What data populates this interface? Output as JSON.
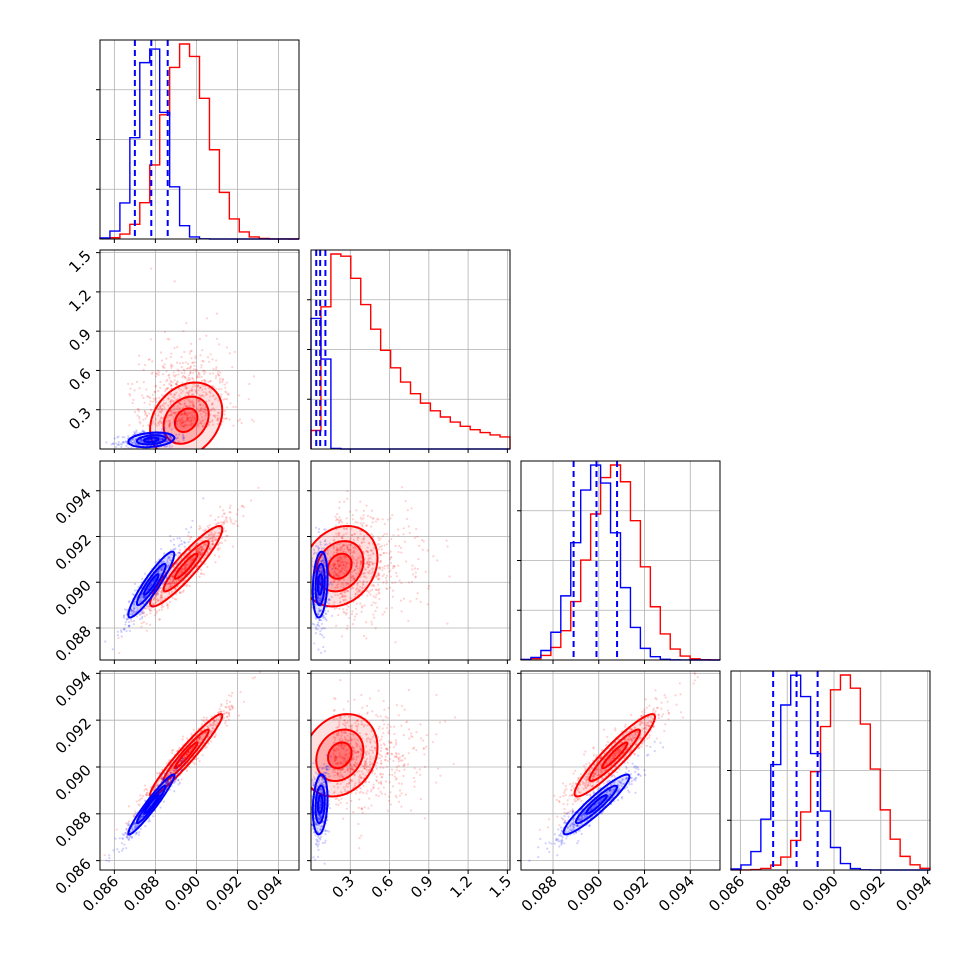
{
  "chart_data": {
    "type": "scatter",
    "subtype": "corner-plot",
    "n_params": 4,
    "grid": true,
    "colors": {
      "series_a": "#0000ff",
      "series_b": "#ff0000"
    },
    "parameters": [
      {
        "range": [
          0.0853,
          0.095
        ],
        "ticks": [
          0.086,
          0.088,
          0.09,
          0.092,
          0.094
        ],
        "tick_labels": [
          "0.086",
          "0.088",
          "0.090",
          "0.092",
          "0.094"
        ],
        "blue": {
          "mean": 0.0878,
          "sd": 0.0007
        },
        "red": {
          "mean": 0.0895,
          "sd": 0.0011
        },
        "quantiles_blue": [
          0.087,
          0.0878,
          0.0886
        ]
      },
      {
        "range": [
          0.0,
          1.52
        ],
        "ticks": [
          0.3,
          0.6,
          0.9,
          1.2,
          1.5
        ],
        "tick_labels": [
          "0.3",
          "0.6",
          "0.9",
          "1.2",
          "1.5"
        ],
        "blue": {
          "mean": 0.07,
          "sd": 0.035
        },
        "red": {
          "mean": 0.22,
          "sd": 0.18
        },
        "quantiles_blue": [
          0.04,
          0.07,
          0.11
        ]
      },
      {
        "range": [
          0.0866,
          0.0953
        ],
        "ticks": [
          0.088,
          0.09,
          0.092,
          0.094
        ],
        "tick_labels": [
          "0.088",
          "0.090",
          "0.092",
          "0.094"
        ],
        "blue": {
          "mean": 0.0899,
          "sd": 0.0009
        },
        "red": {
          "mean": 0.0907,
          "sd": 0.0011
        },
        "quantiles_blue": [
          0.0889,
          0.0899,
          0.0908
        ]
      },
      {
        "range": [
          0.0856,
          0.0941
        ],
        "ticks": [
          0.086,
          0.088,
          0.09,
          0.092,
          0.094
        ],
        "tick_labels": [
          "0.086",
          "0.088",
          "0.090",
          "0.092",
          "0.094"
        ],
        "blue": {
          "mean": 0.0884,
          "sd": 0.0008
        },
        "red": {
          "mean": 0.0905,
          "sd": 0.0011
        },
        "quantiles_blue": [
          0.0874,
          0.0884,
          0.0893
        ]
      }
    ],
    "correlation": {
      "p0_p2": 0.92,
      "p0_p3": 0.96,
      "p2_p3": 0.93,
      "p0_p1": 0.25,
      "p1_p2": 0.2,
      "p1_p3": 0.2
    }
  }
}
